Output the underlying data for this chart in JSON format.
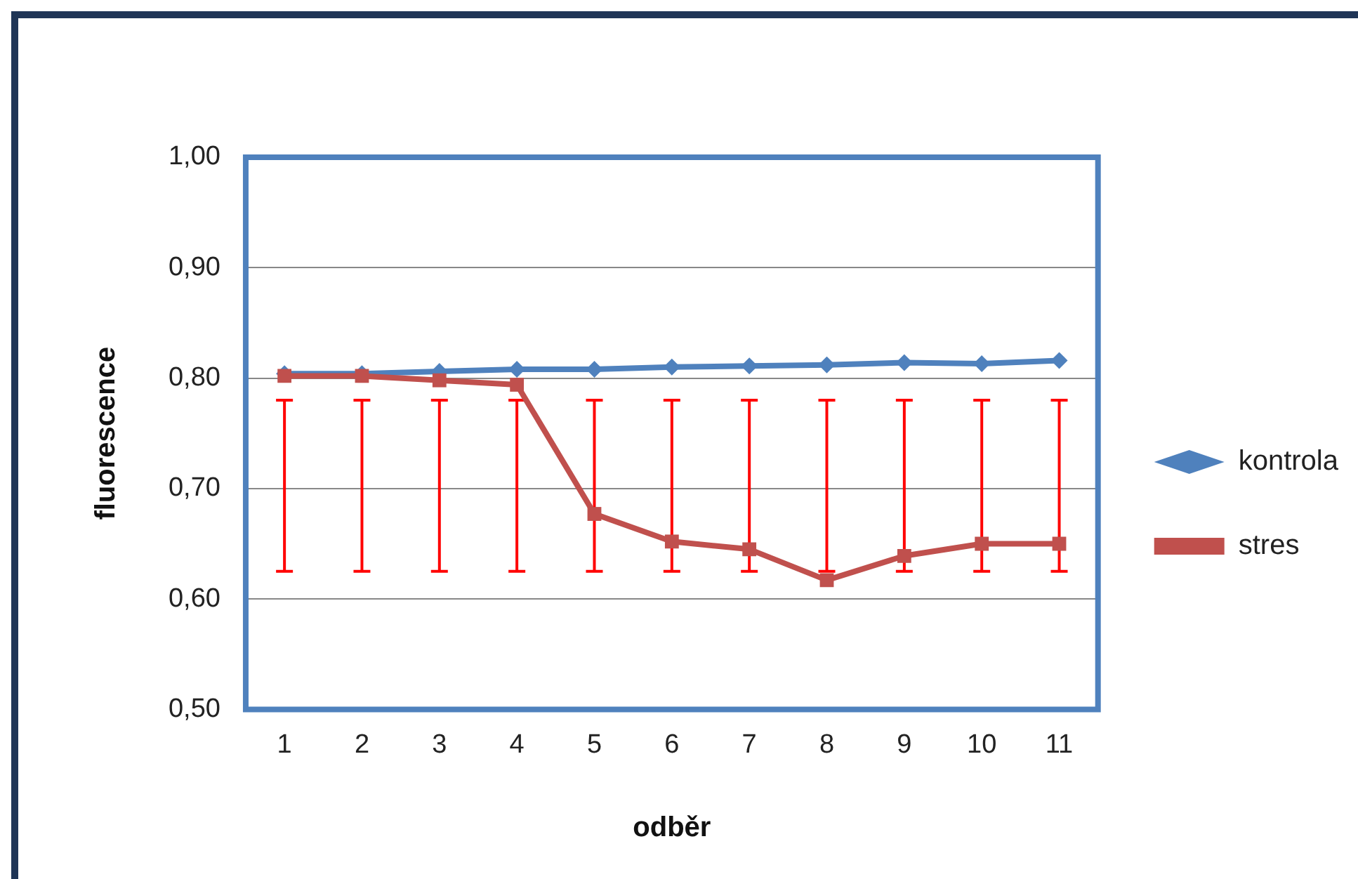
{
  "chart_data": {
    "type": "line",
    "xlabel": "odběr",
    "ylabel": "fluorescence",
    "categories": [
      "1",
      "2",
      "3",
      "4",
      "5",
      "6",
      "7",
      "8",
      "9",
      "10",
      "11"
    ],
    "series": [
      {
        "name": "kontrola",
        "color": "#4f81bd",
        "marker": "diamond",
        "values": [
          0.804,
          0.804,
          0.806,
          0.808,
          0.808,
          0.81,
          0.811,
          0.812,
          0.814,
          0.813,
          0.816
        ]
      },
      {
        "name": "stres",
        "color": "#c0504d",
        "marker": "square",
        "values": [
          0.802,
          0.802,
          0.798,
          0.794,
          0.677,
          0.652,
          0.645,
          0.617,
          0.639,
          0.65,
          0.65
        ],
        "errors": [
          [
            0.625,
            0.78
          ],
          [
            0.625,
            0.78
          ],
          [
            0.625,
            0.78
          ],
          [
            0.625,
            0.78
          ],
          [
            0.625,
            0.78
          ],
          [
            0.625,
            0.78
          ],
          [
            0.625,
            0.78
          ],
          [
            0.625,
            0.78
          ],
          [
            0.625,
            0.78
          ],
          [
            0.625,
            0.78
          ],
          [
            0.625,
            0.78
          ]
        ]
      }
    ],
    "ylim": [
      0.5,
      1.0
    ],
    "yticks": [
      {
        "value": 0.5,
        "label": "0,50"
      },
      {
        "value": 0.6,
        "label": "0,60"
      },
      {
        "value": 0.7,
        "label": "0,70"
      },
      {
        "value": 0.8,
        "label": "0,80"
      },
      {
        "value": 0.9,
        "label": "0,90"
      },
      {
        "value": 1.0,
        "label": "1,00"
      }
    ],
    "grid": "y",
    "legend": "right",
    "line_style": "solid"
  }
}
